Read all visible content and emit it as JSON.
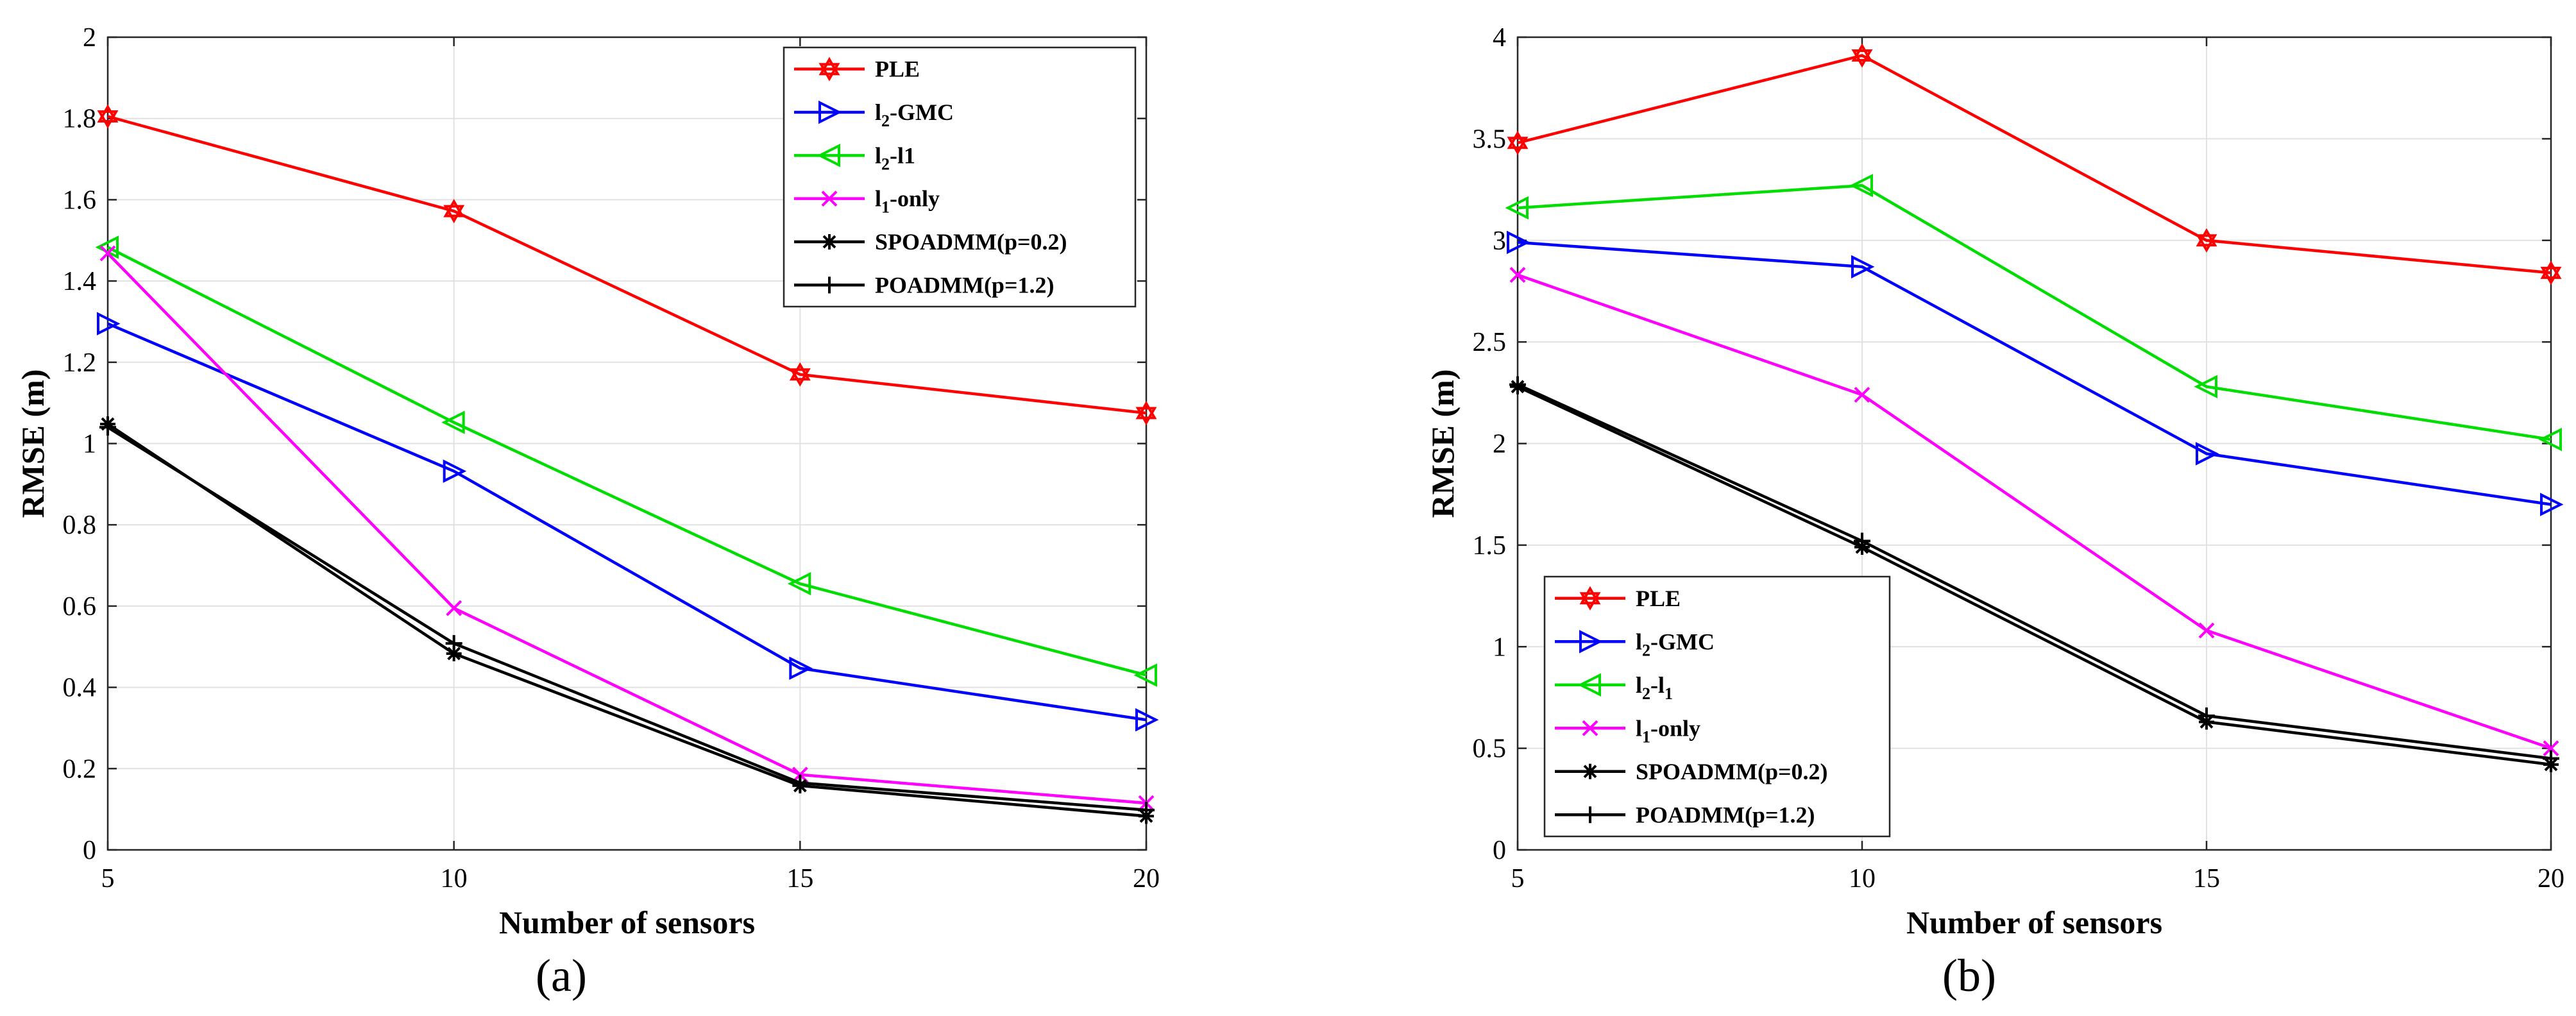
{
  "chart_data": [
    {
      "type": "line",
      "panel_label": "(a)",
      "x": [
        5,
        10,
        15,
        20
      ],
      "xlabel": "Number of sensors",
      "ylabel": "RMSE (m)",
      "xlim": [
        5,
        20
      ],
      "ylim": [
        0,
        2
      ],
      "xticks": [
        "5",
        "10",
        "15",
        "20"
      ],
      "yticks": [
        "0",
        "0.2",
        "0.4",
        "0.6",
        "0.8",
        "1",
        "1.2",
        "1.4",
        "1.6",
        "1.8",
        "2"
      ],
      "grid": true,
      "legend_position": "top-right",
      "series": [
        {
          "name": "PLE",
          "base": "l",
          "sub": "",
          "rest": "",
          "display": "PLE",
          "color": "#ff0000",
          "marker": "hexagram",
          "values": [
            1.805,
            1.572,
            1.17,
            1.075
          ]
        },
        {
          "name": "l2-GMC",
          "base": "l",
          "sub": "2",
          "rest": "-GMC",
          "display": "",
          "color": "#0000ff",
          "marker": "triangle-right",
          "values": [
            1.295,
            0.932,
            0.447,
            0.32
          ]
        },
        {
          "name": "l2-l1",
          "base": "l",
          "sub": "2",
          "rest": "-l1",
          "display": "",
          "color": "#00dd00",
          "marker": "triangle-left",
          "values": [
            1.483,
            1.052,
            0.655,
            0.43
          ]
        },
        {
          "name": "l1-only",
          "base": "l",
          "sub": "1",
          "rest": "-only",
          "display": "",
          "color": "#ff00ff",
          "marker": "x",
          "values": [
            1.468,
            0.595,
            0.185,
            0.115
          ]
        },
        {
          "name": "SPOADMM(p=0.2)",
          "base": "",
          "sub": "",
          "rest": "",
          "display": "SPOADMM(p=0.2)",
          "color": "#000000",
          "marker": "star",
          "values": [
            1.048,
            0.483,
            0.158,
            0.083
          ]
        },
        {
          "name": "POADMM(p=1.2)",
          "base": "",
          "sub": "",
          "rest": "",
          "display": "POADMM(p=1.2)",
          "color": "#000000",
          "marker": "plus",
          "values": [
            1.04,
            0.508,
            0.165,
            0.098
          ]
        }
      ]
    },
    {
      "type": "line",
      "panel_label": "(b)",
      "x": [
        5,
        10,
        15,
        20
      ],
      "xlabel": "Number of sensors",
      "ylabel": "RMSE (m)",
      "xlim": [
        5,
        20
      ],
      "ylim": [
        0,
        4
      ],
      "xticks": [
        "5",
        "10",
        "15",
        "20"
      ],
      "yticks": [
        "0",
        "0.5",
        "1",
        "1.5",
        "2",
        "2.5",
        "3",
        "3.5",
        "4"
      ],
      "grid": true,
      "legend_position": "bottom-left",
      "series": [
        {
          "name": "PLE",
          "base": "",
          "sub": "",
          "rest": "",
          "display": "PLE",
          "color": "#ff0000",
          "marker": "hexagram",
          "values": [
            3.48,
            3.91,
            3.0,
            2.84
          ]
        },
        {
          "name": "l2-GMC",
          "base": "l",
          "sub": "2",
          "rest": "-GMC",
          "display": "",
          "color": "#0000ff",
          "marker": "triangle-right",
          "values": [
            2.99,
            2.87,
            1.95,
            1.7
          ]
        },
        {
          "name": "l2-l1",
          "base": "l",
          "sub": "2",
          "rest": "-l",
          "sub2": "1",
          "display": "",
          "color": "#00dd00",
          "marker": "triangle-left",
          "values": [
            3.16,
            3.27,
            2.28,
            2.02
          ]
        },
        {
          "name": "l1-only",
          "base": "l",
          "sub": "1",
          "rest": "-only",
          "display": "",
          "color": "#ff00ff",
          "marker": "x",
          "values": [
            2.83,
            2.24,
            1.08,
            0.5
          ]
        },
        {
          "name": "SPOADMM(p=0.2)",
          "base": "",
          "sub": "",
          "rest": "",
          "display": "SPOADMM(p=0.2)",
          "color": "#000000",
          "marker": "star",
          "values": [
            2.28,
            1.49,
            0.63,
            0.42
          ]
        },
        {
          "name": "POADMM(p=1.2)",
          "base": "",
          "sub": "",
          "rest": "",
          "display": "POADMM(p=1.2)",
          "color": "#000000",
          "marker": "plus",
          "values": [
            2.29,
            1.52,
            0.66,
            0.45
          ]
        }
      ]
    }
  ]
}
